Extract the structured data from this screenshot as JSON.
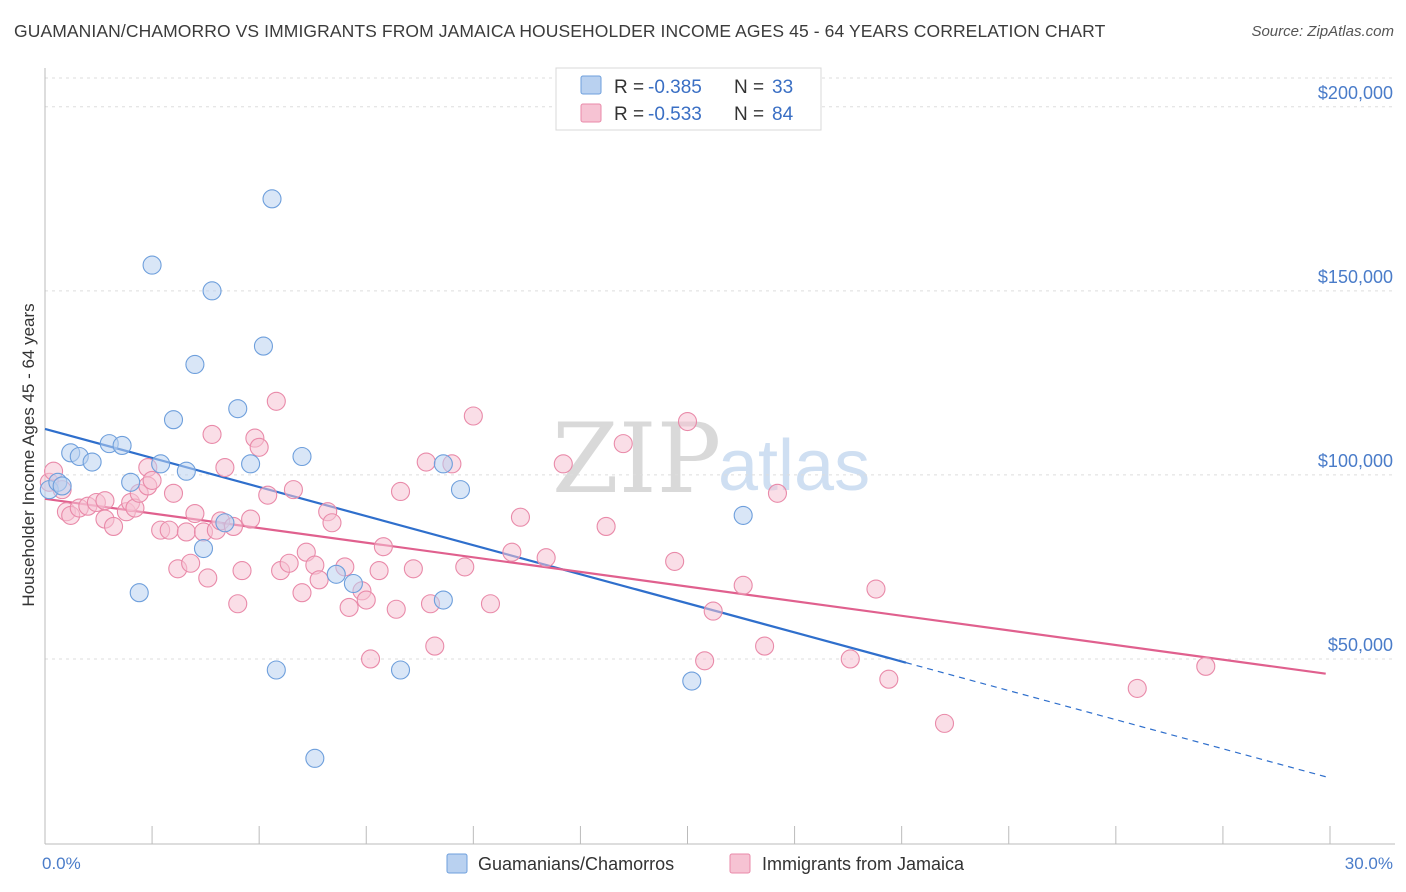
{
  "title": "GUAMANIAN/CHAMORRO VS IMMIGRANTS FROM JAMAICA HOUSEHOLDER INCOME AGES 45 - 64 YEARS CORRELATION CHART",
  "source": "Source: ZipAtlas.com",
  "watermark": {
    "zip": "ZIP",
    "atlas": "atlas"
  },
  "legend": {
    "r_label": "R =",
    "n_label": "N =",
    "entries": [
      {
        "r": "-0.385",
        "n": "33"
      },
      {
        "r": "-0.533",
        "n": "84"
      }
    ]
  },
  "colors": {
    "blue_fill": "#b9d1f0",
    "blue_stroke": "#6e9fdc",
    "blue_line": "#2f6fcc",
    "pink_fill": "#f6c3d3",
    "pink_stroke": "#e98aa9",
    "pink_line": "#e0608e",
    "grid": "#dddddd",
    "tick_text": "#4a7cc9"
  },
  "chart_data": {
    "type": "scatter",
    "xlabel": "",
    "ylabel": "Householder Income Ages 45 - 64 years",
    "xlim": [
      0,
      30
    ],
    "ylim": [
      0,
      210000
    ],
    "x_tick_labels": [
      "0.0%",
      "30.0%"
    ],
    "y_ticks": [
      50000,
      100000,
      150000,
      200000
    ],
    "y_tick_labels": [
      "$50,000",
      "$100,000",
      "$150,000",
      "$200,000"
    ],
    "grid": true,
    "legend_position": "bottom",
    "series": [
      {
        "name": "Guamanians/Chamorros",
        "color": "#6e9fdc",
        "points": [
          [
            0.1,
            96000
          ],
          [
            0.3,
            98000
          ],
          [
            0.6,
            106000
          ],
          [
            0.8,
            105000
          ],
          [
            1.1,
            103500
          ],
          [
            1.5,
            108500
          ],
          [
            1.8,
            108000
          ],
          [
            2.0,
            98000
          ],
          [
            2.2,
            68000
          ],
          [
            2.5,
            157000
          ],
          [
            2.7,
            103000
          ],
          [
            3.0,
            115000
          ],
          [
            3.3,
            101000
          ],
          [
            3.5,
            130000
          ],
          [
            3.7,
            80000
          ],
          [
            3.9,
            150000
          ],
          [
            4.2,
            87000
          ],
          [
            4.5,
            118000
          ],
          [
            4.8,
            103000
          ],
          [
            5.1,
            135000
          ],
          [
            5.3,
            175000
          ],
          [
            5.4,
            47000
          ],
          [
            6.0,
            105000
          ],
          [
            6.3,
            23000
          ],
          [
            6.8,
            73000
          ],
          [
            7.2,
            70500
          ],
          [
            8.3,
            47000
          ],
          [
            9.3,
            66000
          ],
          [
            9.3,
            103000
          ],
          [
            9.7,
            96000
          ],
          [
            15.1,
            44000
          ],
          [
            16.3,
            89000
          ],
          [
            0.4,
            97000
          ]
        ],
        "trend": {
          "x": [
            0,
            20.1
          ],
          "y": [
            112500,
            49000
          ],
          "dashed_to": [
            29.9,
            18000
          ]
        }
      },
      {
        "name": "Immigrants from Jamaica",
        "color": "#e98aa9",
        "points": [
          [
            0.1,
            98000
          ],
          [
            0.2,
            101000
          ],
          [
            0.4,
            96000
          ],
          [
            0.5,
            90000
          ],
          [
            0.6,
            89000
          ],
          [
            0.8,
            91000
          ],
          [
            1.0,
            91500
          ],
          [
            1.2,
            92500
          ],
          [
            1.4,
            93000
          ],
          [
            1.4,
            88000
          ],
          [
            1.6,
            86000
          ],
          [
            1.9,
            90000
          ],
          [
            2.0,
            92500
          ],
          [
            2.1,
            91000
          ],
          [
            2.2,
            95000
          ],
          [
            2.4,
            97000
          ],
          [
            2.4,
            102000
          ],
          [
            2.5,
            98500
          ],
          [
            2.7,
            85000
          ],
          [
            2.9,
            85000
          ],
          [
            3.0,
            95000
          ],
          [
            3.1,
            74500
          ],
          [
            3.3,
            84500
          ],
          [
            3.4,
            76000
          ],
          [
            3.5,
            89500
          ],
          [
            3.7,
            84500
          ],
          [
            3.8,
            72000
          ],
          [
            3.9,
            111000
          ],
          [
            4.0,
            85000
          ],
          [
            4.1,
            87500
          ],
          [
            4.2,
            102000
          ],
          [
            4.4,
            86000
          ],
          [
            4.5,
            65000
          ],
          [
            4.6,
            74000
          ],
          [
            4.8,
            88000
          ],
          [
            4.9,
            110000
          ],
          [
            5.0,
            107500
          ],
          [
            5.2,
            94500
          ],
          [
            5.4,
            120000
          ],
          [
            5.5,
            74000
          ],
          [
            5.7,
            76000
          ],
          [
            5.8,
            96000
          ],
          [
            6.0,
            68000
          ],
          [
            6.1,
            79000
          ],
          [
            6.3,
            75500
          ],
          [
            6.4,
            71500
          ],
          [
            6.6,
            90000
          ],
          [
            6.7,
            87000
          ],
          [
            7.0,
            75000
          ],
          [
            7.1,
            64000
          ],
          [
            7.4,
            68500
          ],
          [
            7.5,
            66000
          ],
          [
            7.6,
            50000
          ],
          [
            7.8,
            74000
          ],
          [
            7.9,
            80500
          ],
          [
            8.2,
            63500
          ],
          [
            8.3,
            95500
          ],
          [
            8.6,
            74500
          ],
          [
            8.9,
            103500
          ],
          [
            9.0,
            65000
          ],
          [
            9.1,
            53500
          ],
          [
            9.5,
            103000
          ],
          [
            9.8,
            75000
          ],
          [
            10.0,
            116000
          ],
          [
            10.4,
            65000
          ],
          [
            10.9,
            79000
          ],
          [
            11.1,
            88500
          ],
          [
            11.7,
            77500
          ],
          [
            12.1,
            103000
          ],
          [
            13.1,
            86000
          ],
          [
            13.5,
            108500
          ],
          [
            14.7,
            76500
          ],
          [
            15.0,
            114500
          ],
          [
            15.4,
            49500
          ],
          [
            15.6,
            63000
          ],
          [
            16.3,
            70000
          ],
          [
            16.8,
            53500
          ],
          [
            17.1,
            95000
          ],
          [
            18.8,
            50000
          ],
          [
            19.4,
            69000
          ],
          [
            19.7,
            44500
          ],
          [
            21.0,
            32500
          ],
          [
            25.5,
            42000
          ],
          [
            27.1,
            48000
          ]
        ],
        "trend": {
          "x": [
            0,
            29.9
          ],
          "y": [
            93500,
            46000
          ]
        }
      }
    ]
  }
}
